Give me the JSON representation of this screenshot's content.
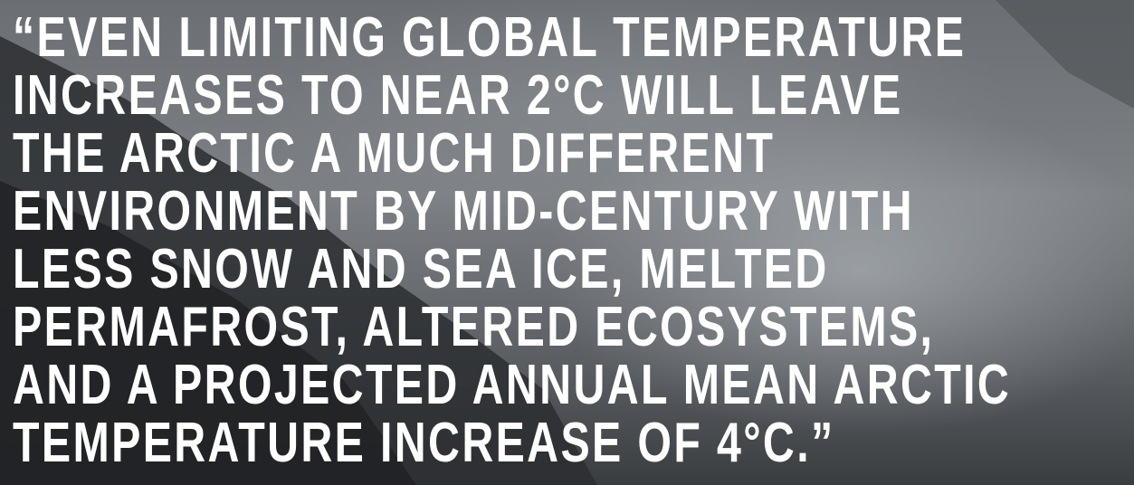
{
  "quote": {
    "lines": [
      "“EVEN LIMITING GLOBAL TEMPERATURE",
      "INCREASES TO NEAR 2°C WILL LEAVE",
      "THE ARCTIC A MUCH DIFFERENT",
      "ENVIRONMENT BY MID-CENTURY WITH",
      "LESS SNOW AND SEA ICE, MELTED",
      "PERMAFROST, ALTERED ECOSYSTEMS,",
      "AND A PROJECTED ANNUAL MEAN ARCTIC",
      "TEMPERATURE INCREASE OF 4°C.”"
    ]
  }
}
